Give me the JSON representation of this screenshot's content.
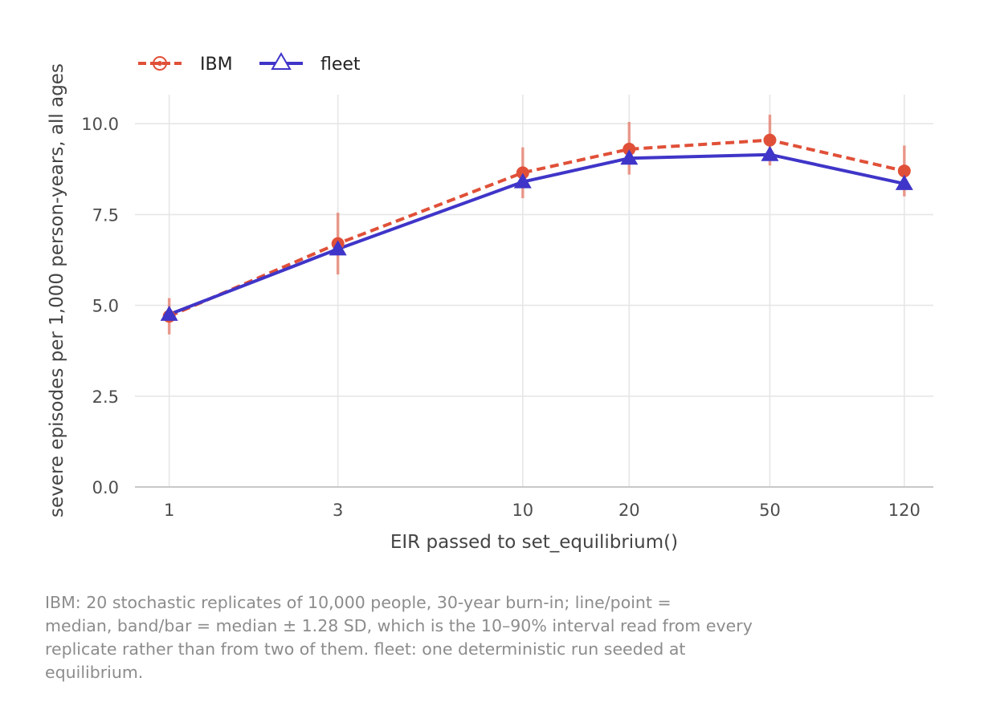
{
  "chart_data": {
    "type": "line",
    "title": "",
    "xlabel": "EIR passed to set_equilibrium()",
    "ylabel": "severe episodes per 1,000 person-years, all ages",
    "x_scale": "log",
    "x": [
      1,
      3,
      10,
      20,
      50,
      120
    ],
    "x_tick_labels": [
      "1",
      "3",
      "10",
      "20",
      "50",
      "120"
    ],
    "y_ticks": [
      0,
      2.5,
      5,
      7.5,
      10
    ],
    "y_tick_labels": [
      "0.0",
      "2.5",
      "5.0",
      "7.5",
      "10.0"
    ],
    "xlim": [
      0.8,
      145
    ],
    "ylim": [
      0,
      10.8
    ],
    "grid": true,
    "legend_position": "top-left",
    "series": [
      {
        "name": "IBM",
        "color": "#e05038",
        "line_style": "dashed",
        "marker": "circle",
        "values": [
          4.7,
          6.7,
          8.65,
          9.3,
          9.55,
          8.7
        ],
        "error_low": [
          4.2,
          5.85,
          7.95,
          8.6,
          8.85,
          8.0
        ],
        "error_high": [
          5.2,
          7.55,
          9.35,
          10.05,
          10.25,
          9.4
        ]
      },
      {
        "name": "fleet",
        "color": "#3f35c8",
        "line_style": "solid",
        "marker": "triangle",
        "values": [
          4.75,
          6.55,
          8.4,
          9.05,
          9.15,
          8.35
        ]
      }
    ],
    "caption": [
      "IBM: 20 stochastic replicates of 10,000 people, 30-year burn-in; line/point =",
      "median, band/bar = median ± 1.28 SD, which is the 10–90% interval read from every",
      "replicate rather than from two of them. fleet: one deterministic run seeded at",
      "equilibrium."
    ]
  }
}
